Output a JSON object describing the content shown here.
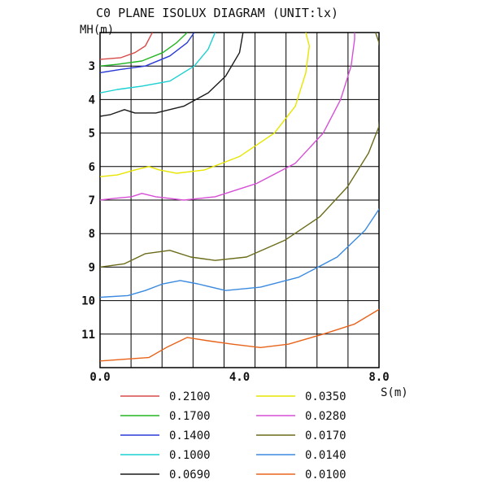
{
  "chart_data": {
    "type": "line",
    "title": "C0 PLANE ISOLUX DIAGRAM (UNIT:lx)",
    "ylabel": "MH(m)",
    "xlabel": "S(m)",
    "xlim": [
      0,
      8
    ],
    "ylim": [
      2,
      12
    ],
    "y_reversed": true,
    "grid": true,
    "x_ticks": [
      {
        "value": 0,
        "label": "0.0"
      },
      {
        "value": 4,
        "label": "4.0"
      },
      {
        "value": 8,
        "label": "8.0"
      }
    ],
    "y_ticks": [
      {
        "value": 3,
        "label": "3"
      },
      {
        "value": 4,
        "label": "4"
      },
      {
        "value": 5,
        "label": "5"
      },
      {
        "value": 6,
        "label": "6"
      },
      {
        "value": 7,
        "label": "7"
      },
      {
        "value": 8,
        "label": "8"
      },
      {
        "value": 9,
        "label": "9"
      },
      {
        "value": 10,
        "label": "10"
      },
      {
        "value": 11,
        "label": "11"
      }
    ],
    "legend_position": "bottom",
    "series": [
      {
        "name": "0.2100",
        "color": "#d94a4a",
        "points": [
          [
            0,
            2.8
          ],
          [
            0.6,
            2.75
          ],
          [
            1.0,
            2.6
          ],
          [
            1.3,
            2.4
          ],
          [
            1.5,
            2.0
          ]
        ]
      },
      {
        "name": "0.1700",
        "color": "#22b622",
        "points": [
          [
            0,
            3.0
          ],
          [
            0.5,
            2.95
          ],
          [
            1.2,
            2.85
          ],
          [
            1.8,
            2.6
          ],
          [
            2.2,
            2.3
          ],
          [
            2.5,
            2.0
          ]
        ]
      },
      {
        "name": "0.1400",
        "color": "#2a3ad6",
        "points": [
          [
            0,
            3.2
          ],
          [
            0.6,
            3.1
          ],
          [
            1.3,
            3.0
          ],
          [
            2.0,
            2.7
          ],
          [
            2.5,
            2.3
          ],
          [
            2.7,
            2.0
          ]
        ]
      },
      {
        "name": "0.1000",
        "color": "#1ad0d0",
        "points": [
          [
            0,
            3.8
          ],
          [
            0.5,
            3.7
          ],
          [
            1.2,
            3.6
          ],
          [
            2.0,
            3.45
          ],
          [
            2.7,
            3.0
          ],
          [
            3.1,
            2.5
          ],
          [
            3.3,
            2.0
          ]
        ]
      },
      {
        "name": "0.0690",
        "color": "#1a1a1a",
        "points": [
          [
            0,
            4.5
          ],
          [
            0.3,
            4.45
          ],
          [
            0.7,
            4.3
          ],
          [
            1.0,
            4.4
          ],
          [
            1.6,
            4.4
          ],
          [
            2.4,
            4.2
          ],
          [
            3.1,
            3.8
          ],
          [
            3.6,
            3.3
          ],
          [
            4.0,
            2.6
          ],
          [
            4.1,
            2.0
          ]
        ]
      },
      {
        "name": "0.0350",
        "color": "#e6e600",
        "points": [
          [
            0,
            6.3
          ],
          [
            0.5,
            6.25
          ],
          [
            1.0,
            6.1
          ],
          [
            1.4,
            6.0
          ],
          [
            1.7,
            6.1
          ],
          [
            2.2,
            6.2
          ],
          [
            3.0,
            6.1
          ],
          [
            4.0,
            5.7
          ],
          [
            5.0,
            5.0
          ],
          [
            5.6,
            4.2
          ],
          [
            5.9,
            3.2
          ],
          [
            6.0,
            2.4
          ],
          [
            5.9,
            2.0
          ]
        ]
      },
      {
        "name": "0.0280",
        "color": "#d64fd6",
        "points": [
          [
            0,
            7.0
          ],
          [
            0.4,
            6.95
          ],
          [
            0.9,
            6.9
          ],
          [
            1.2,
            6.8
          ],
          [
            1.6,
            6.9
          ],
          [
            2.4,
            7.0
          ],
          [
            3.3,
            6.9
          ],
          [
            4.5,
            6.5
          ],
          [
            5.6,
            5.9
          ],
          [
            6.4,
            5.0
          ],
          [
            6.9,
            4.0
          ],
          [
            7.2,
            3.0
          ],
          [
            7.3,
            2.2
          ],
          [
            7.3,
            2.0
          ]
        ]
      },
      {
        "name": "0.0170",
        "color": "#6b6b1a",
        "points": [
          [
            0,
            9.0
          ],
          [
            0.7,
            8.9
          ],
          [
            1.3,
            8.6
          ],
          [
            2.0,
            8.5
          ],
          [
            2.6,
            8.7
          ],
          [
            3.3,
            8.8
          ],
          [
            4.2,
            8.7
          ],
          [
            5.3,
            8.2
          ],
          [
            6.3,
            7.5
          ],
          [
            7.1,
            6.6
          ],
          [
            7.7,
            5.6
          ],
          [
            8.0,
            4.8
          ],
          [
            8.1,
            3.8
          ],
          [
            8.1,
            3.0
          ],
          [
            8.0,
            2.3
          ],
          [
            7.9,
            2.0
          ]
        ]
      },
      {
        "name": "0.0140",
        "color": "#3a8ae0",
        "points": [
          [
            0,
            9.9
          ],
          [
            0.8,
            9.85
          ],
          [
            1.3,
            9.7
          ],
          [
            1.8,
            9.5
          ],
          [
            2.3,
            9.4
          ],
          [
            2.8,
            9.5
          ],
          [
            3.6,
            9.7
          ],
          [
            4.6,
            9.6
          ],
          [
            5.7,
            9.3
          ],
          [
            6.8,
            8.7
          ],
          [
            7.6,
            7.9
          ],
          [
            8.3,
            6.8
          ],
          [
            8.6,
            6.2
          ]
        ]
      },
      {
        "name": "0.0100",
        "color": "#e8631a",
        "points": [
          [
            0,
            11.8
          ],
          [
            0.7,
            11.75
          ],
          [
            1.4,
            11.7
          ],
          [
            1.9,
            11.4
          ],
          [
            2.5,
            11.1
          ],
          [
            3.1,
            11.2
          ],
          [
            3.8,
            11.3
          ],
          [
            4.6,
            11.4
          ],
          [
            5.4,
            11.3
          ],
          [
            6.4,
            11.0
          ],
          [
            7.3,
            10.7
          ],
          [
            8.1,
            10.2
          ],
          [
            8.6,
            9.8
          ],
          [
            8.9,
            9.7
          ]
        ]
      }
    ]
  }
}
